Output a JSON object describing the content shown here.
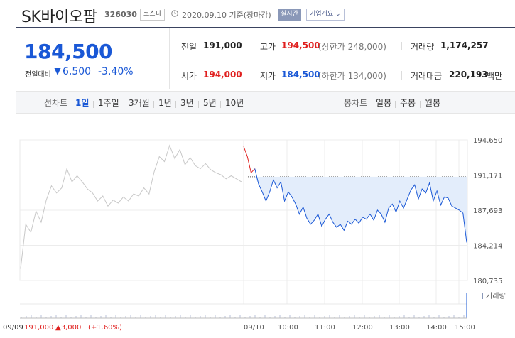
{
  "header": {
    "title": "SK바이오팜",
    "code": "326030",
    "market_badge": "코스피",
    "date_text": "2020.09.10 기준(장마감)",
    "realtime_label": "실시간",
    "overview_label": "기업개요 ⌄"
  },
  "price": {
    "current": "184,500",
    "change_label": "전일대비",
    "change_amount": "6,500",
    "change_percent": "-3.40%",
    "direction": "down"
  },
  "summary": {
    "row1": [
      {
        "label": "전일",
        "value": "191,000",
        "tone": "normal"
      },
      {
        "label": "고가",
        "value": "194,500",
        "tone": "red",
        "sub": "(상한가 248,000)"
      },
      {
        "label": "거래량",
        "value": "1,174,257",
        "tone": "normal"
      }
    ],
    "row2": [
      {
        "label": "시가",
        "value": "194,000",
        "tone": "red"
      },
      {
        "label": "저가",
        "value": "184,500",
        "tone": "blue",
        "sub": "(하한가 134,000)"
      },
      {
        "label": "거래대금",
        "value": "220,193",
        "tone": "normal",
        "unit": "백만"
      }
    ]
  },
  "chart_tabs": {
    "line_label": "선차트",
    "line_tabs": [
      "1일",
      "1주일",
      "3개월",
      "1년",
      "3년",
      "5년",
      "10년"
    ],
    "active": "1일",
    "candle_label": "봉차트",
    "candle_tabs": [
      "일봉",
      "주봉",
      "월봉"
    ]
  },
  "colors": {
    "accent_blue": "#1a58d6",
    "red": "#e0201f",
    "prev_day_line": "#c8c8c8",
    "fill": "#e3edfb"
  },
  "chart_data": {
    "type": "line",
    "y_ticks": [
      "194,650",
      "191,171",
      "187,693",
      "184,214",
      "180,735"
    ],
    "ylim": [
      180735,
      194650
    ],
    "reference_value": 191000,
    "x_tick_labels": [
      "09/10",
      "10:00",
      "11:00",
      "12:00",
      "13:00",
      "14:00",
      "15:00"
    ],
    "volume_label": "거래량",
    "footer": {
      "prev_date": "09/09",
      "prev_close": "191,000",
      "prev_change": "▲3,000",
      "prev_change_pct": "(+1.60%)"
    },
    "series": [
      {
        "name": "09/09",
        "values": [
          181900,
          186300,
          185500,
          187600,
          186500,
          188700,
          190100,
          189400,
          189900,
          191800,
          190500,
          191100,
          190500,
          189800,
          189400,
          188600,
          189100,
          188100,
          188700,
          188400,
          189000,
          188600,
          189300,
          189100,
          189900,
          189300,
          191500,
          193000,
          192500,
          194100,
          192800,
          193700,
          192200,
          192900,
          192100,
          191800,
          192300,
          191700,
          191400,
          191200,
          190800,
          191100,
          190800,
          190500
        ]
      },
      {
        "name": "09/10",
        "values": [
          194000,
          193000,
          191400,
          191800,
          190300,
          189500,
          188600,
          189500,
          190700,
          189900,
          190500,
          188600,
          189500,
          189000,
          188300,
          187300,
          188000,
          186900,
          186300,
          186700,
          187300,
          186100,
          186800,
          187300,
          186500,
          186000,
          186300,
          185700,
          186600,
          186300,
          186800,
          186400,
          187000,
          186800,
          187300,
          186700,
          187700,
          187300,
          186500,
          187900,
          188300,
          187500,
          188600,
          187900,
          188800,
          189700,
          190200,
          188800,
          189800,
          189400,
          190400,
          188600,
          189600,
          188200,
          189000,
          188900,
          188100,
          187900,
          187700,
          187400,
          184500
        ]
      }
    ]
  }
}
